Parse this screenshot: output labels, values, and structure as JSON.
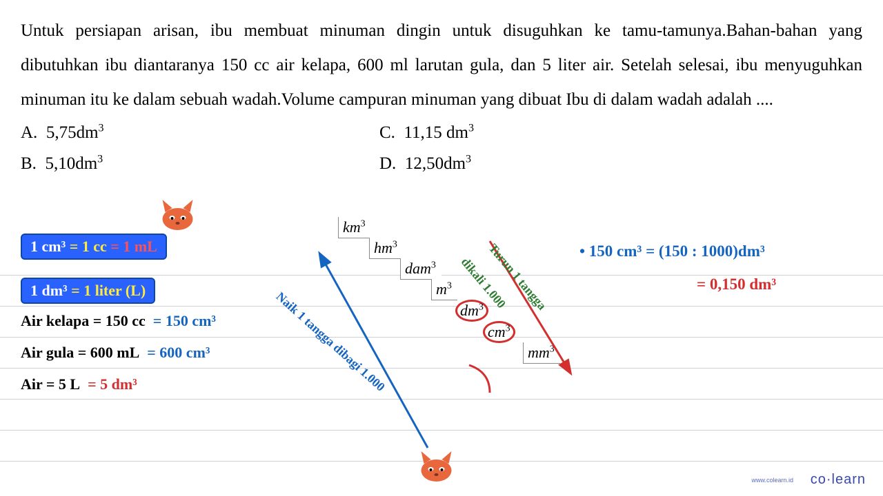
{
  "question": "Untuk persiapan arisan, ibu membuat minuman dingin untuk disuguhkan ke tamu-tamunya.Bahan-bahan yang dibutuhkan ibu diantaranya 150 cc air kelapa, 600 ml larutan gula, dan 5 liter air.  Setelah selesai, ibu menyuguhkan minuman itu ke dalam sebuah wadah.Volume campuran minuman yang dibuat Ibu di dalam wadah adalah ....",
  "options": {
    "A": "5,75dm³",
    "B": "5,10dm³",
    "C": "11,15 dm³",
    "D": "12,50dm³"
  },
  "bluebox1": {
    "p1": "1 cm³",
    "p2": "= 1 cc",
    "p3": "= 1 mL"
  },
  "bluebox2": {
    "p1": "1 dm³",
    "p2": "= 1 liter (L)"
  },
  "handlines": {
    "l1a": "Air kelapa = 150 cc",
    "l1b": "= 150 cm³",
    "l2a": "Air gula = 600 mL",
    "l2b": "= 600 cm³",
    "l3a": "Air = 5 L",
    "l3b": "= 5 dm³"
  },
  "stairs": [
    "km³",
    "hm³",
    "dam³",
    "m³",
    "dm³",
    "cm³",
    "mm³"
  ],
  "arrow_up": "Naik 1 tangga dibagi 1.000",
  "arrow_down_a": "Turun 1 tangga",
  "arrow_down_b": "dikali 1.000",
  "calc_line1": "•   150 cm³ = (150 : 1000)dm³",
  "calc_line2": "= 0,150 dm³",
  "brand": "co·learn",
  "brand_small": "www.colearn.id",
  "colors": {
    "blue": "#1565c0",
    "red": "#d32f2f",
    "green": "#2e7d32",
    "box_bg": "#2962ff",
    "yellow": "#ffeb3b"
  }
}
